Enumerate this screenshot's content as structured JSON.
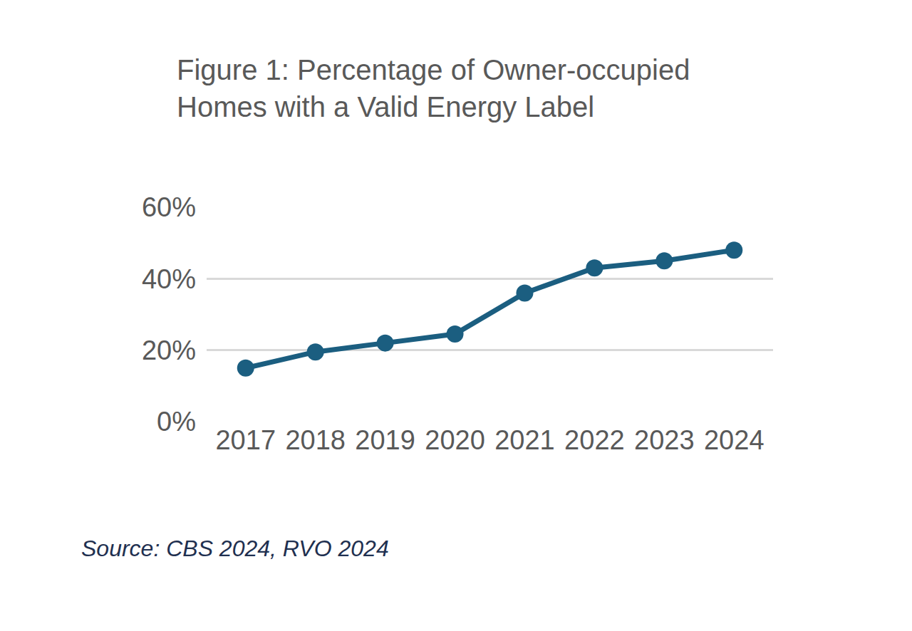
{
  "chart_data": {
    "type": "line",
    "title": "Figure 1: Percentage of Owner-occupied Homes with a Valid Energy Label",
    "categories": [
      "2017",
      "2018",
      "2019",
      "2020",
      "2021",
      "2022",
      "2023",
      "2024"
    ],
    "values": [
      15,
      19.5,
      22,
      24.5,
      36,
      43,
      45,
      48
    ],
    "color": "#1b5e80",
    "marker": "circle",
    "ylim": [
      0,
      60
    ],
    "yticks": [
      {
        "value": 0,
        "label": "0%"
      },
      {
        "value": 20,
        "label": "20%"
      },
      {
        "value": 40,
        "label": "40%"
      },
      {
        "value": 60,
        "label": "60%"
      }
    ],
    "grid": true,
    "source": "Source: CBS 2024, RVO 2024"
  }
}
